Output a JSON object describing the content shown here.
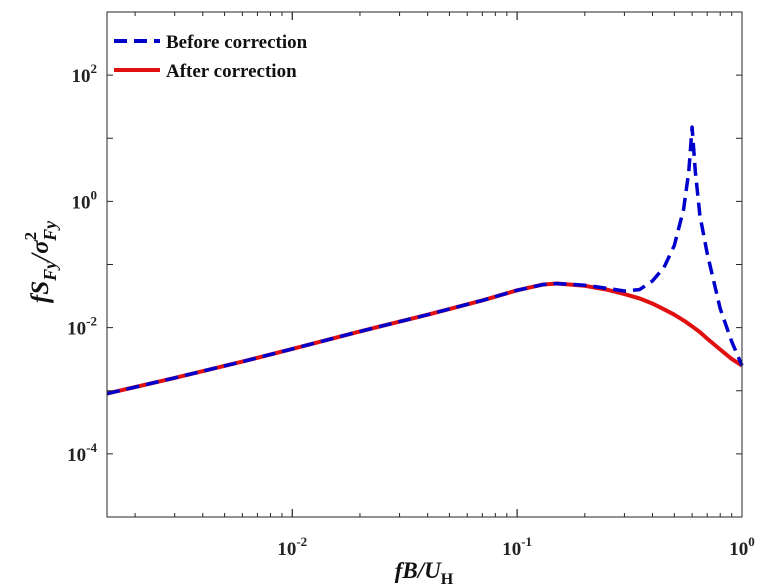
{
  "chart_data": {
    "type": "line",
    "title": "",
    "xlabel": {
      "main": "fB/U",
      "sub": "H"
    },
    "ylabel": {
      "prefix": "fS",
      "sub1": "Fy",
      "mid": "/σ",
      "sup": "2",
      "sub2": "Fy"
    },
    "x_scale": "log",
    "y_scale": "log",
    "xlim": [
      0.0015,
      1
    ],
    "ylim": [
      1e-05,
      1000
    ],
    "x_ticks": [
      {
        "value": 0.01,
        "base": "10",
        "exp": "-2"
      },
      {
        "value": 0.1,
        "base": "10",
        "exp": "-1"
      },
      {
        "value": 1,
        "base": "10",
        "exp": "0"
      }
    ],
    "y_ticks": [
      {
        "value": 0.0001,
        "base": "10",
        "exp": "-4"
      },
      {
        "value": 0.01,
        "base": "10",
        "exp": "-2"
      },
      {
        "value": 1,
        "base": "10",
        "exp": "0"
      },
      {
        "value": 100,
        "base": "10",
        "exp": "2"
      }
    ],
    "grid": false,
    "legend_position": "top-left",
    "series": [
      {
        "name": "Before correction",
        "color": "#0000cc",
        "style": "dashed",
        "x": [
          0.0015,
          0.003,
          0.006,
          0.01,
          0.02,
          0.04,
          0.07,
          0.1,
          0.13,
          0.15,
          0.2,
          0.25,
          0.3,
          0.35,
          0.4,
          0.45,
          0.5,
          0.55,
          0.58,
          0.6,
          0.62,
          0.65,
          0.7,
          0.8,
          0.9,
          1.0
        ],
        "y": [
          0.0009,
          0.0016,
          0.0029,
          0.0046,
          0.0087,
          0.016,
          0.027,
          0.039,
          0.048,
          0.05,
          0.047,
          0.042,
          0.038,
          0.04,
          0.055,
          0.09,
          0.2,
          0.75,
          3.0,
          15.0,
          3.0,
          0.6,
          0.15,
          0.02,
          0.006,
          0.0025
        ]
      },
      {
        "name": "After correction",
        "color": "#e01010",
        "style": "solid",
        "x": [
          0.0015,
          0.003,
          0.006,
          0.01,
          0.02,
          0.04,
          0.07,
          0.1,
          0.13,
          0.15,
          0.2,
          0.25,
          0.3,
          0.35,
          0.4,
          0.45,
          0.5,
          0.55,
          0.6,
          0.65,
          0.7,
          0.8,
          0.9,
          1.0
        ],
        "y": [
          0.0009,
          0.0016,
          0.0029,
          0.0046,
          0.0087,
          0.016,
          0.027,
          0.039,
          0.048,
          0.05,
          0.046,
          0.04,
          0.034,
          0.029,
          0.024,
          0.0195,
          0.016,
          0.013,
          0.0105,
          0.0085,
          0.0067,
          0.0045,
          0.0032,
          0.0025
        ]
      }
    ]
  }
}
